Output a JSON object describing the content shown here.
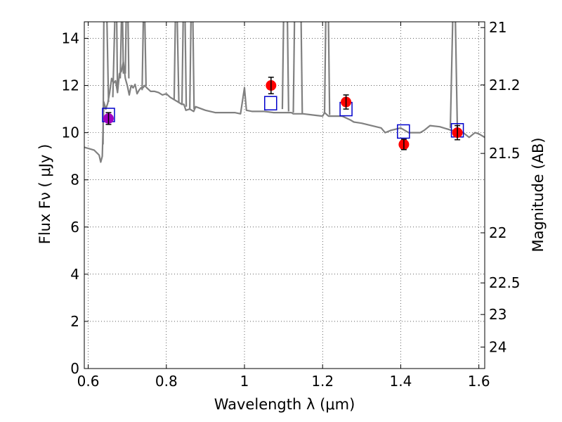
{
  "chart_data": {
    "type": "scatter",
    "xlabel": "Wavelength  λ (μm)",
    "ylabel": "Flux  Fν  ( μJy )",
    "ylabel_right": "Magnitude (AB)",
    "xlim": [
      0.59,
      1.615
    ],
    "ylim": [
      0,
      14.7
    ],
    "grid": true,
    "x_ticks": [
      {
        "value": 0.6,
        "label": "0.6"
      },
      {
        "value": 0.8,
        "label": "0.8"
      },
      {
        "value": 1.0,
        "label": "1"
      },
      {
        "value": 1.2,
        "label": "1.2"
      },
      {
        "value": 1.4,
        "label": "1.4"
      },
      {
        "value": 1.6,
        "label": "1.6"
      }
    ],
    "y_ticks": [
      {
        "value": 0,
        "label": "0"
      },
      {
        "value": 2,
        "label": "2"
      },
      {
        "value": 4,
        "label": "4"
      },
      {
        "value": 6,
        "label": "6"
      },
      {
        "value": 8,
        "label": "8"
      },
      {
        "value": 10,
        "label": "10"
      },
      {
        "value": 12,
        "label": "12"
      },
      {
        "value": 14,
        "label": "14"
      }
    ],
    "right_ticks": [
      {
        "mag": 21,
        "label": "21"
      },
      {
        "mag": 21.2,
        "label": "21.2"
      },
      {
        "mag": 21.5,
        "label": "21.5"
      },
      {
        "mag": 22,
        "label": "22"
      },
      {
        "mag": 22.5,
        "label": "22.5"
      },
      {
        "mag": 23,
        "label": "23"
      },
      {
        "mag": 24,
        "label": "24"
      }
    ],
    "colors": {
      "spectrum": "#808080",
      "measured": "#ff0000",
      "measured_alt": "#a000c0",
      "model": "#0000cc",
      "errorbar": "#000000"
    },
    "series": [
      {
        "kind": "line",
        "x": [
          0.59,
          0.615,
          0.628,
          0.632,
          0.636,
          0.64,
          0.645,
          0.65,
          0.655,
          0.66,
          0.665,
          0.67,
          0.675,
          0.68,
          0.685,
          0.69,
          0.695,
          0.7,
          0.705,
          0.71,
          0.715,
          0.72,
          0.725,
          0.73,
          0.735,
          0.74,
          0.745,
          0.75,
          0.76,
          0.77,
          0.78,
          0.79,
          0.8,
          0.81,
          0.82,
          0.83,
          0.84,
          0.845,
          0.85,
          0.86,
          0.87,
          0.875,
          0.9,
          0.925,
          0.95,
          0.975,
          0.99,
          1.0,
          1.005,
          1.02,
          1.05,
          1.075,
          1.1,
          1.12,
          1.125,
          1.15,
          1.175,
          1.2,
          1.205,
          1.215,
          1.225,
          1.25,
          1.27,
          1.28,
          1.3,
          1.325,
          1.35,
          1.36,
          1.375,
          1.4,
          1.42,
          1.45,
          1.46,
          1.475,
          1.5,
          1.52,
          1.53,
          1.55,
          1.56,
          1.575,
          1.59,
          1.6,
          1.615
        ],
        "y": [
          9.38,
          9.26,
          9.05,
          8.75,
          9.0,
          11.3,
          11.0,
          11.25,
          11.7,
          12.3,
          12.1,
          12.2,
          11.7,
          12.5,
          12.6,
          13.0,
          12.3,
          12.0,
          11.6,
          12.0,
          11.9,
          12.05,
          11.65,
          11.8,
          11.9,
          11.9,
          12.0,
          11.9,
          11.75,
          11.75,
          11.7,
          11.6,
          11.65,
          11.5,
          11.4,
          11.3,
          11.2,
          11.2,
          10.95,
          11.0,
          10.9,
          11.1,
          10.95,
          10.85,
          10.85,
          10.85,
          10.8,
          11.9,
          10.95,
          10.9,
          10.9,
          10.85,
          10.85,
          10.85,
          10.8,
          10.8,
          10.75,
          10.7,
          10.85,
          10.7,
          10.7,
          10.7,
          10.55,
          10.45,
          10.4,
          10.3,
          10.2,
          10.0,
          10.1,
          10.2,
          10.0,
          10.0,
          10.1,
          10.3,
          10.25,
          10.15,
          10.1,
          10.1,
          10.0,
          9.8,
          10.0,
          9.95,
          9.8
        ]
      },
      {
        "kind": "spikes",
        "segments": [
          [
            [
              0.638,
              9.5
            ],
            [
              0.64,
              14.7
            ]
          ],
          [
            [
              0.648,
              14.7
            ],
            [
              0.652,
              11.3
            ]
          ],
          [
            [
              0.663,
              11.5
            ],
            [
              0.668,
              14.7
            ]
          ],
          [
            [
              0.673,
              14.7
            ],
            [
              0.675,
              11.7
            ]
          ],
          [
            [
              0.682,
              12.3
            ],
            [
              0.685,
              14.7
            ]
          ],
          [
            [
              0.688,
              14.7
            ],
            [
              0.69,
              12.5
            ]
          ],
          [
            [
              0.695,
              12.5
            ],
            [
              0.697,
              14.7
            ]
          ],
          [
            [
              0.702,
              14.7
            ],
            [
              0.704,
              12.3
            ]
          ],
          [
            [
              0.738,
              11.8
            ],
            [
              0.741,
              14.7
            ]
          ],
          [
            [
              0.745,
              14.7
            ],
            [
              0.748,
              12.0
            ]
          ],
          [
            [
              0.82,
              11.4
            ],
            [
              0.823,
              14.7
            ]
          ],
          [
            [
              0.828,
              14.7
            ],
            [
              0.832,
              11.3
            ]
          ],
          [
            [
              0.84,
              11.2
            ],
            [
              0.843,
              14.7
            ]
          ],
          [
            [
              0.848,
              14.7
            ],
            [
              0.851,
              11.1
            ]
          ],
          [
            [
              0.86,
              11.0
            ],
            [
              0.863,
              14.7
            ]
          ],
          [
            [
              0.868,
              14.7
            ],
            [
              0.871,
              11.0
            ]
          ],
          [
            [
              1.097,
              11.0
            ],
            [
              1.1,
              14.7
            ]
          ],
          [
            [
              1.11,
              14.7
            ],
            [
              1.113,
              10.9
            ]
          ],
          [
            [
              1.125,
              10.85
            ],
            [
              1.128,
              14.7
            ]
          ],
          [
            [
              1.145,
              14.7
            ],
            [
              1.148,
              10.8
            ]
          ],
          [
            [
              1.205,
              10.8
            ],
            [
              1.208,
              14.7
            ]
          ],
          [
            [
              1.215,
              14.7
            ],
            [
              1.218,
              10.75
            ]
          ],
          [
            [
              1.527,
              10.2
            ],
            [
              1.533,
              14.7
            ]
          ],
          [
            [
              1.54,
              14.7
            ],
            [
              1.545,
              10.1
            ]
          ]
        ]
      },
      {
        "kind": "model_boxes",
        "x": [
          0.652,
          1.067,
          1.26,
          1.407,
          1.545
        ],
        "y": [
          10.75,
          11.25,
          11.0,
          10.05,
          10.1
        ]
      },
      {
        "kind": "measured_points",
        "x": [
          0.652,
          1.068,
          1.26,
          1.408,
          1.545
        ],
        "y": [
          10.6,
          12.0,
          11.3,
          9.5,
          10.0
        ],
        "yerr": [
          0.25,
          0.35,
          0.3,
          0.22,
          0.3
        ],
        "color_keys": [
          "measured_alt",
          "measured",
          "measured",
          "measured",
          "measured"
        ]
      }
    ]
  }
}
